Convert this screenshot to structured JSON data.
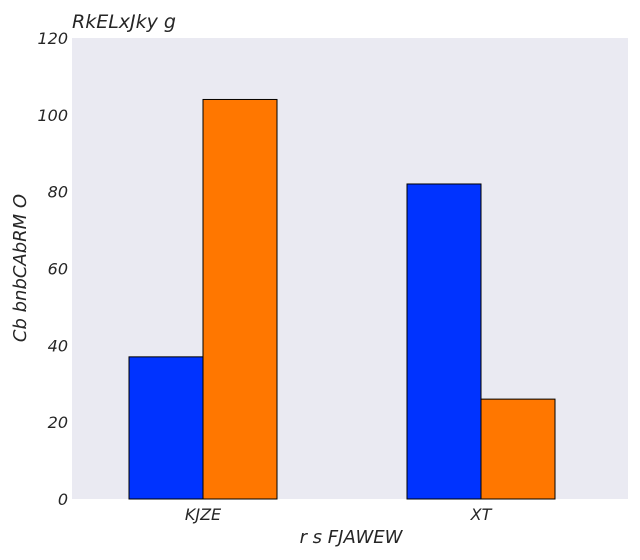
{
  "chart_data": {
    "type": "bar",
    "title": "RkELxJky g",
    "xlabel": "r s FJAWEW",
    "ylabel": "Cb bnbCAbRM O",
    "categories": [
      "KJZE",
      "XT"
    ],
    "series": [
      {
        "values": [
          37,
          82
        ],
        "color": "#0033ff"
      },
      {
        "values": [
          104,
          26
        ],
        "color": "#ff7700"
      }
    ],
    "ylim": [
      0,
      120
    ],
    "yticks": [
      0,
      20,
      40,
      60,
      80,
      100,
      120
    ],
    "grid": false,
    "legend": "none"
  }
}
